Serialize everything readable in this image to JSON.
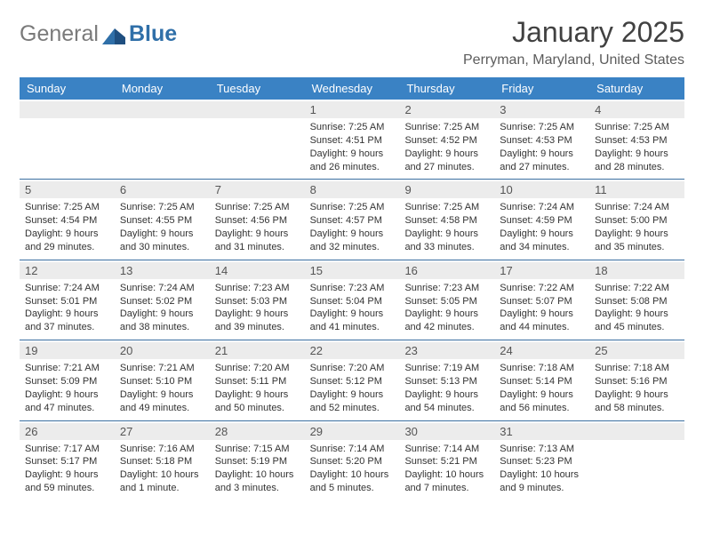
{
  "logo": {
    "text_gray": "General",
    "text_blue": "Blue"
  },
  "title": "January 2025",
  "location": "Perryman, Maryland, United States",
  "colors": {
    "header_bar": "#3a82c4",
    "header_text": "#ffffff",
    "daynum_bg": "#ececec",
    "week_border": "#3a6fa0",
    "body_text": "#333333"
  },
  "day_names": [
    "Sunday",
    "Monday",
    "Tuesday",
    "Wednesday",
    "Thursday",
    "Friday",
    "Saturday"
  ],
  "weeks": [
    [
      null,
      null,
      null,
      {
        "n": "1",
        "sr": "7:25 AM",
        "ss": "4:51 PM",
        "dl": "9 hours and 26 minutes."
      },
      {
        "n": "2",
        "sr": "7:25 AM",
        "ss": "4:52 PM",
        "dl": "9 hours and 27 minutes."
      },
      {
        "n": "3",
        "sr": "7:25 AM",
        "ss": "4:53 PM",
        "dl": "9 hours and 27 minutes."
      },
      {
        "n": "4",
        "sr": "7:25 AM",
        "ss": "4:53 PM",
        "dl": "9 hours and 28 minutes."
      }
    ],
    [
      {
        "n": "5",
        "sr": "7:25 AM",
        "ss": "4:54 PM",
        "dl": "9 hours and 29 minutes."
      },
      {
        "n": "6",
        "sr": "7:25 AM",
        "ss": "4:55 PM",
        "dl": "9 hours and 30 minutes."
      },
      {
        "n": "7",
        "sr": "7:25 AM",
        "ss": "4:56 PM",
        "dl": "9 hours and 31 minutes."
      },
      {
        "n": "8",
        "sr": "7:25 AM",
        "ss": "4:57 PM",
        "dl": "9 hours and 32 minutes."
      },
      {
        "n": "9",
        "sr": "7:25 AM",
        "ss": "4:58 PM",
        "dl": "9 hours and 33 minutes."
      },
      {
        "n": "10",
        "sr": "7:24 AM",
        "ss": "4:59 PM",
        "dl": "9 hours and 34 minutes."
      },
      {
        "n": "11",
        "sr": "7:24 AM",
        "ss": "5:00 PM",
        "dl": "9 hours and 35 minutes."
      }
    ],
    [
      {
        "n": "12",
        "sr": "7:24 AM",
        "ss": "5:01 PM",
        "dl": "9 hours and 37 minutes."
      },
      {
        "n": "13",
        "sr": "7:24 AM",
        "ss": "5:02 PM",
        "dl": "9 hours and 38 minutes."
      },
      {
        "n": "14",
        "sr": "7:23 AM",
        "ss": "5:03 PM",
        "dl": "9 hours and 39 minutes."
      },
      {
        "n": "15",
        "sr": "7:23 AM",
        "ss": "5:04 PM",
        "dl": "9 hours and 41 minutes."
      },
      {
        "n": "16",
        "sr": "7:23 AM",
        "ss": "5:05 PM",
        "dl": "9 hours and 42 minutes."
      },
      {
        "n": "17",
        "sr": "7:22 AM",
        "ss": "5:07 PM",
        "dl": "9 hours and 44 minutes."
      },
      {
        "n": "18",
        "sr": "7:22 AM",
        "ss": "5:08 PM",
        "dl": "9 hours and 45 minutes."
      }
    ],
    [
      {
        "n": "19",
        "sr": "7:21 AM",
        "ss": "5:09 PM",
        "dl": "9 hours and 47 minutes."
      },
      {
        "n": "20",
        "sr": "7:21 AM",
        "ss": "5:10 PM",
        "dl": "9 hours and 49 minutes."
      },
      {
        "n": "21",
        "sr": "7:20 AM",
        "ss": "5:11 PM",
        "dl": "9 hours and 50 minutes."
      },
      {
        "n": "22",
        "sr": "7:20 AM",
        "ss": "5:12 PM",
        "dl": "9 hours and 52 minutes."
      },
      {
        "n": "23",
        "sr": "7:19 AM",
        "ss": "5:13 PM",
        "dl": "9 hours and 54 minutes."
      },
      {
        "n": "24",
        "sr": "7:18 AM",
        "ss": "5:14 PM",
        "dl": "9 hours and 56 minutes."
      },
      {
        "n": "25",
        "sr": "7:18 AM",
        "ss": "5:16 PM",
        "dl": "9 hours and 58 minutes."
      }
    ],
    [
      {
        "n": "26",
        "sr": "7:17 AM",
        "ss": "5:17 PM",
        "dl": "9 hours and 59 minutes."
      },
      {
        "n": "27",
        "sr": "7:16 AM",
        "ss": "5:18 PM",
        "dl": "10 hours and 1 minute."
      },
      {
        "n": "28",
        "sr": "7:15 AM",
        "ss": "5:19 PM",
        "dl": "10 hours and 3 minutes."
      },
      {
        "n": "29",
        "sr": "7:14 AM",
        "ss": "5:20 PM",
        "dl": "10 hours and 5 minutes."
      },
      {
        "n": "30",
        "sr": "7:14 AM",
        "ss": "5:21 PM",
        "dl": "10 hours and 7 minutes."
      },
      {
        "n": "31",
        "sr": "7:13 AM",
        "ss": "5:23 PM",
        "dl": "10 hours and 9 minutes."
      },
      null
    ]
  ],
  "labels": {
    "sunrise": "Sunrise:",
    "sunset": "Sunset:",
    "daylight": "Daylight:"
  }
}
